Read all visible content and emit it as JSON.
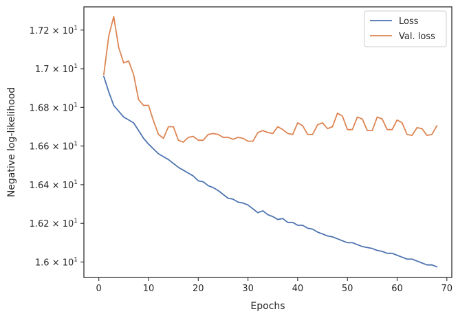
{
  "chart_data": {
    "type": "line",
    "title": "",
    "xlabel": "Epochs",
    "ylabel": "Negative log-likelihood",
    "xlim": [
      -3,
      71
    ],
    "ylim": [
      15.92,
      17.32
    ],
    "xticks": [
      {
        "value": 0,
        "label": "0"
      },
      {
        "value": 10,
        "label": "10"
      },
      {
        "value": 20,
        "label": "20"
      },
      {
        "value": 30,
        "label": "30"
      },
      {
        "value": 40,
        "label": "40"
      },
      {
        "value": 50,
        "label": "50"
      },
      {
        "value": 60,
        "label": "60"
      },
      {
        "value": 70,
        "label": "70"
      }
    ],
    "yticks": [
      {
        "value": 16.0,
        "mantissa": "1.6",
        "exponent": "1"
      },
      {
        "value": 16.2,
        "mantissa": "1.62",
        "exponent": "1"
      },
      {
        "value": 16.4,
        "mantissa": "1.64",
        "exponent": "1"
      },
      {
        "value": 16.6,
        "mantissa": "1.66",
        "exponent": "1"
      },
      {
        "value": 16.8,
        "mantissa": "1.68",
        "exponent": "1"
      },
      {
        "value": 17.0,
        "mantissa": "1.7",
        "exponent": "1"
      },
      {
        "value": 17.2,
        "mantissa": "1.72",
        "exponent": "1"
      }
    ],
    "grid": false,
    "legend_position": "top-right",
    "series": [
      {
        "name": "Loss",
        "color": "#4c72b0",
        "x": [
          1,
          2,
          3,
          4,
          5,
          6,
          7,
          8,
          9,
          10,
          11,
          12,
          13,
          14,
          15,
          16,
          17,
          18,
          19,
          20,
          21,
          22,
          23,
          24,
          25,
          26,
          27,
          28,
          29,
          30,
          31,
          32,
          33,
          34,
          35,
          36,
          37,
          38,
          39,
          40,
          41,
          42,
          43,
          44,
          45,
          46,
          47,
          48,
          49,
          50,
          51,
          52,
          53,
          54,
          55,
          56,
          57,
          58,
          59,
          60,
          61,
          62,
          63,
          64,
          65,
          66,
          67,
          68
        ],
        "y": [
          16.96,
          16.88,
          16.81,
          16.78,
          16.75,
          16.735,
          16.72,
          16.68,
          16.64,
          16.61,
          16.585,
          16.56,
          16.545,
          16.53,
          16.51,
          16.49,
          16.475,
          16.46,
          16.445,
          16.42,
          16.415,
          16.395,
          16.385,
          16.37,
          16.35,
          16.33,
          16.325,
          16.31,
          16.305,
          16.295,
          16.275,
          16.255,
          16.265,
          16.245,
          16.235,
          16.22,
          16.225,
          16.205,
          16.205,
          16.19,
          16.19,
          16.175,
          16.17,
          16.155,
          16.145,
          16.135,
          16.13,
          16.12,
          16.11,
          16.1,
          16.1,
          16.09,
          16.08,
          16.075,
          16.07,
          16.06,
          16.055,
          16.045,
          16.045,
          16.035,
          16.025,
          16.015,
          16.015,
          16.005,
          15.995,
          15.985,
          15.985,
          15.975
        ]
      },
      {
        "name": "Val. loss",
        "color": "#dd8452",
        "x": [
          1,
          2,
          3,
          4,
          5,
          6,
          7,
          8,
          9,
          10,
          11,
          12,
          13,
          14,
          15,
          16,
          17,
          18,
          19,
          20,
          21,
          22,
          23,
          24,
          25,
          26,
          27,
          28,
          29,
          30,
          31,
          32,
          33,
          34,
          35,
          36,
          37,
          38,
          39,
          40,
          41,
          42,
          43,
          44,
          45,
          46,
          47,
          48,
          49,
          50,
          51,
          52,
          53,
          54,
          55,
          56,
          57,
          58,
          59,
          60,
          61,
          62,
          63,
          64,
          65,
          66,
          67,
          68
        ],
        "y": [
          16.97,
          17.17,
          17.27,
          17.11,
          17.03,
          17.04,
          16.97,
          16.84,
          16.81,
          16.81,
          16.73,
          16.66,
          16.64,
          16.7,
          16.7,
          16.63,
          16.62,
          16.645,
          16.65,
          16.63,
          16.63,
          16.66,
          16.665,
          16.66,
          16.645,
          16.645,
          16.635,
          16.645,
          16.64,
          16.625,
          16.625,
          16.67,
          16.68,
          16.67,
          16.665,
          16.7,
          16.685,
          16.665,
          16.66,
          16.72,
          16.705,
          16.66,
          16.66,
          16.71,
          16.72,
          16.69,
          16.7,
          16.77,
          16.755,
          16.685,
          16.685,
          16.75,
          16.74,
          16.68,
          16.68,
          16.75,
          16.74,
          16.685,
          16.685,
          16.735,
          16.72,
          16.66,
          16.655,
          16.695,
          16.69,
          16.655,
          16.66,
          16.705
        ]
      }
    ]
  }
}
